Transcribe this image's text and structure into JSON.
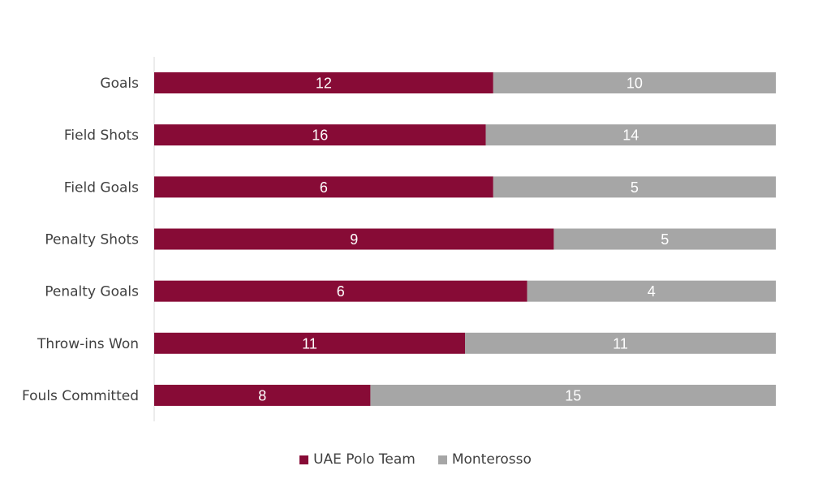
{
  "chart_data": {
    "type": "bar",
    "orientation": "horizontal",
    "stacking": "percent",
    "categories": [
      "Goals",
      "Field Shots",
      "Field Goals",
      "Penalty Shots",
      "Penalty Goals",
      "Throw-ins Won",
      "Fouls Committed"
    ],
    "series": [
      {
        "name": "UAE Polo Team",
        "color": "#870B36",
        "values": [
          12,
          16,
          6,
          9,
          6,
          11,
          8
        ]
      },
      {
        "name": "Monterosso",
        "color": "#A6A6A6",
        "values": [
          10,
          14,
          5,
          5,
          4,
          11,
          15
        ]
      }
    ],
    "xlim": [
      0,
      1
    ],
    "grid": false,
    "legend_position": "bottom"
  },
  "legend": {
    "items": [
      {
        "label": "UAE Polo Team",
        "color": "#870B36"
      },
      {
        "label": "Monterosso",
        "color": "#A6A6A6"
      }
    ]
  }
}
